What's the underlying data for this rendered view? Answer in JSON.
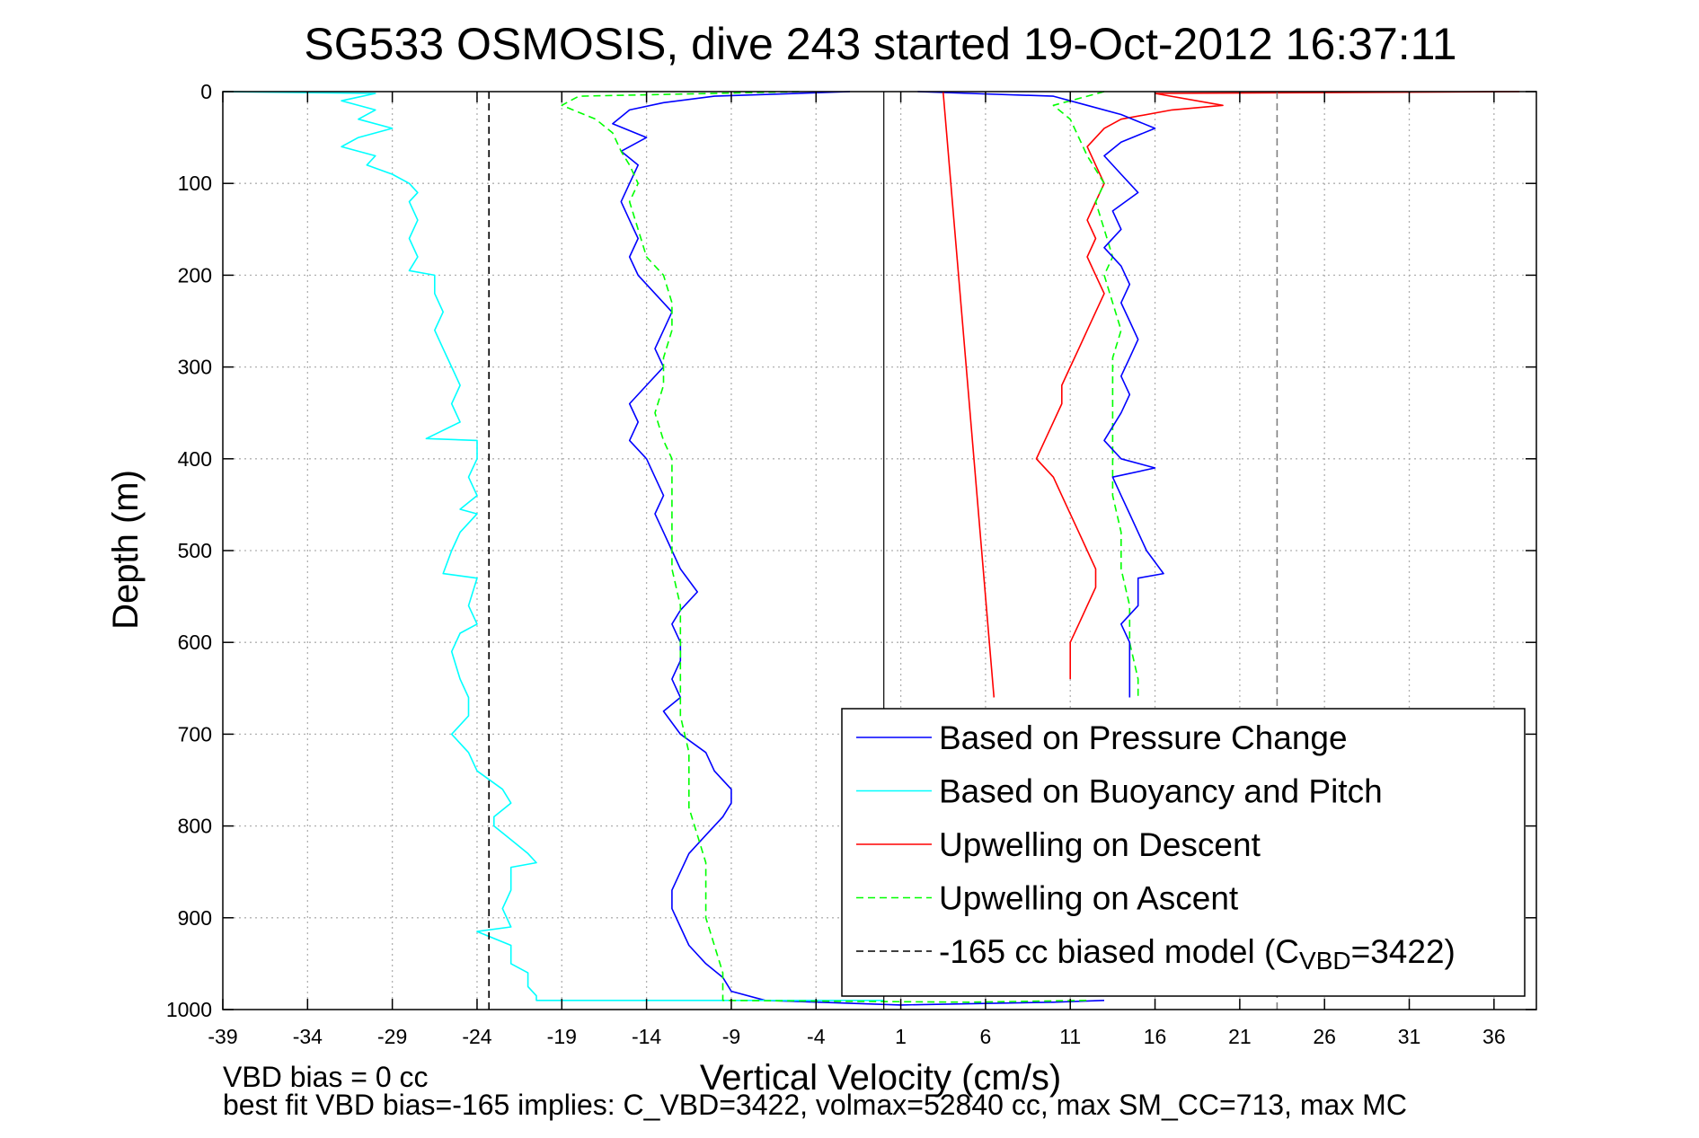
{
  "chart_data": {
    "type": "line",
    "title": "SG533 OSMOSIS, dive 243 started 19-Oct-2012 16:37:11",
    "xlabel": "Vertical Velocity (cm/s)",
    "ylabel": "Depth (m)",
    "xlim": [
      -39,
      38.5
    ],
    "ylim": [
      1000,
      0
    ],
    "y_reversed": true,
    "grid": true,
    "xticks": [
      -39,
      -34,
      -29,
      -24,
      -19,
      -14,
      -9,
      -4,
      1,
      6,
      11,
      16,
      21,
      26,
      31,
      36
    ],
    "yticks": [
      0,
      100,
      200,
      300,
      400,
      500,
      600,
      700,
      800,
      900,
      1000
    ],
    "legend_position": "bottom-right",
    "footer_lines": [
      "VBD bias = 0 cc",
      "best fit VBD bias=-165 implies: C_VBD=3422, volmax=52840 cc, max SM_CC=713, max MC"
    ],
    "series": [
      {
        "name": "Based on Pressure Change",
        "color": "#0000ff",
        "style": "solid",
        "points": [
          [
            -2,
            0
          ],
          [
            -10,
            5
          ],
          [
            -13,
            12
          ],
          [
            -15,
            20
          ],
          [
            -16,
            35
          ],
          [
            -14,
            50
          ],
          [
            -15.5,
            65
          ],
          [
            -14.5,
            80
          ],
          [
            -15,
            100
          ],
          [
            -15.5,
            120
          ],
          [
            -15,
            140
          ],
          [
            -14.5,
            160
          ],
          [
            -15,
            180
          ],
          [
            -14.5,
            200
          ],
          [
            -13.5,
            220
          ],
          [
            -12.5,
            240
          ],
          [
            -13,
            260
          ],
          [
            -13.5,
            280
          ],
          [
            -13,
            300
          ],
          [
            -14,
            320
          ],
          [
            -15,
            340
          ],
          [
            -14.5,
            360
          ],
          [
            -15,
            380
          ],
          [
            -14,
            400
          ],
          [
            -13.5,
            420
          ],
          [
            -13,
            440
          ],
          [
            -13.5,
            460
          ],
          [
            -13,
            480
          ],
          [
            -12.5,
            500
          ],
          [
            -12,
            520
          ],
          [
            -11,
            545
          ],
          [
            -12,
            565
          ],
          [
            -12.5,
            580
          ],
          [
            -12,
            600
          ],
          [
            -12,
            620
          ],
          [
            -12.5,
            640
          ],
          [
            -12,
            660
          ],
          [
            -13,
            675
          ],
          [
            -12,
            700
          ],
          [
            -10.5,
            720
          ],
          [
            -10,
            740
          ],
          [
            -9,
            760
          ],
          [
            -9,
            775
          ],
          [
            -9.5,
            790
          ],
          [
            -10.5,
            810
          ],
          [
            -11.5,
            830
          ],
          [
            -12,
            850
          ],
          [
            -12.5,
            870
          ],
          [
            -12.5,
            890
          ],
          [
            -12,
            910
          ],
          [
            -11.5,
            930
          ],
          [
            -10.5,
            950
          ],
          [
            -9.5,
            965
          ],
          [
            -9,
            980
          ],
          [
            -7,
            990
          ],
          [
            1,
            995
          ],
          [
            10,
            992
          ],
          [
            13,
            990
          ]
        ]
      },
      {
        "name": "Based on Buoyancy and Pitch",
        "color": "#00ffff",
        "style": "solid",
        "points": [
          [
            -39,
            0
          ],
          [
            -30,
            2
          ],
          [
            -32,
            10
          ],
          [
            -30,
            20
          ],
          [
            -31,
            30
          ],
          [
            -29,
            40
          ],
          [
            -31,
            50
          ],
          [
            -32,
            60
          ],
          [
            -30,
            70
          ],
          [
            -30.5,
            80
          ],
          [
            -29,
            90
          ],
          [
            -28,
            100
          ],
          [
            -27.5,
            110
          ],
          [
            -28,
            120
          ],
          [
            -27.5,
            140
          ],
          [
            -28,
            160
          ],
          [
            -27.5,
            180
          ],
          [
            -28,
            195
          ],
          [
            -26.5,
            200
          ],
          [
            -26.5,
            220
          ],
          [
            -26,
            240
          ],
          [
            -26.5,
            260
          ],
          [
            -26,
            280
          ],
          [
            -25.5,
            300
          ],
          [
            -25,
            320
          ],
          [
            -25.5,
            340
          ],
          [
            -25,
            360
          ],
          [
            -27,
            378
          ],
          [
            -24,
            380
          ],
          [
            -24,
            400
          ],
          [
            -24.5,
            420
          ],
          [
            -24,
            440
          ],
          [
            -25,
            455
          ],
          [
            -24,
            460
          ],
          [
            -25,
            480
          ],
          [
            -25.5,
            500
          ],
          [
            -26,
            525
          ],
          [
            -24,
            530
          ],
          [
            -24.5,
            560
          ],
          [
            -24,
            580
          ],
          [
            -25,
            590
          ],
          [
            -25.5,
            610
          ],
          [
            -25,
            640
          ],
          [
            -24.5,
            660
          ],
          [
            -24.5,
            680
          ],
          [
            -25.5,
            700
          ],
          [
            -24.5,
            720
          ],
          [
            -24,
            740
          ],
          [
            -22.5,
            760
          ],
          [
            -22,
            775
          ],
          [
            -23,
            790
          ],
          [
            -23,
            800
          ],
          [
            -22,
            815
          ],
          [
            -21,
            830
          ],
          [
            -20.5,
            840
          ],
          [
            -22,
            845
          ],
          [
            -22,
            870
          ],
          [
            -22.5,
            890
          ],
          [
            -22,
            910
          ],
          [
            -24,
            915
          ],
          [
            -22,
            930
          ],
          [
            -22,
            950
          ],
          [
            -21,
            960
          ],
          [
            -21,
            975
          ],
          [
            -20.5,
            985
          ],
          [
            -20.5,
            990
          ],
          [
            -10,
            990
          ],
          [
            0,
            990
          ]
        ]
      },
      {
        "name": "Upwelling on Descent",
        "color": "#ff0000",
        "style": "solid",
        "points": [
          [
            37.5,
            0
          ],
          [
            16,
            2
          ],
          [
            20,
            15
          ],
          [
            17,
            20
          ],
          [
            14,
            30
          ],
          [
            13,
            40
          ],
          [
            12,
            60
          ],
          [
            12.5,
            80
          ],
          [
            13,
            100
          ],
          [
            12.5,
            120
          ],
          [
            12,
            140
          ],
          [
            12.5,
            160
          ],
          [
            12,
            180
          ],
          [
            12.5,
            200
          ],
          [
            13,
            220
          ],
          [
            12.5,
            240
          ],
          [
            12,
            260
          ],
          [
            11.5,
            280
          ],
          [
            11,
            300
          ],
          [
            10.5,
            320
          ],
          [
            10.5,
            340
          ],
          [
            10,
            360
          ],
          [
            9.5,
            380
          ],
          [
            9,
            400
          ],
          [
            10,
            420
          ],
          [
            10.5,
            440
          ],
          [
            11,
            460
          ],
          [
            11.5,
            480
          ],
          [
            12,
            500
          ],
          [
            12.5,
            520
          ],
          [
            12.5,
            540
          ],
          [
            12,
            560
          ],
          [
            11.5,
            580
          ],
          [
            11,
            600
          ],
          [
            11,
            620
          ],
          [
            11,
            640
          ]
        ]
      },
      {
        "name": "Upwelling on Ascent",
        "color": "#00ff00",
        "style": "dashed",
        "points": [
          [
            -5,
            0
          ],
          [
            -18,
            5
          ],
          [
            -19,
            15
          ],
          [
            -17,
            30
          ],
          [
            -16,
            45
          ],
          [
            -15.5,
            65
          ],
          [
            -15,
            80
          ],
          [
            -14.5,
            100
          ],
          [
            -15,
            120
          ],
          [
            -14.5,
            150
          ],
          [
            -14,
            180
          ],
          [
            -13,
            200
          ],
          [
            -12.5,
            230
          ],
          [
            -12.5,
            260
          ],
          [
            -13,
            290
          ],
          [
            -13,
            320
          ],
          [
            -13.5,
            350
          ],
          [
            -13,
            380
          ],
          [
            -12.5,
            400
          ],
          [
            -12.5,
            440
          ],
          [
            -12.5,
            480
          ],
          [
            -12.5,
            520
          ],
          [
            -12,
            560
          ],
          [
            -12,
            600
          ],
          [
            -12,
            640
          ],
          [
            -12,
            680
          ],
          [
            -11.5,
            720
          ],
          [
            -11.5,
            750
          ],
          [
            -11.5,
            780
          ],
          [
            -11,
            810
          ],
          [
            -10.5,
            840
          ],
          [
            -10.5,
            870
          ],
          [
            -10.5,
            900
          ],
          [
            -10,
            930
          ],
          [
            -9.5,
            960
          ],
          [
            -9.5,
            980
          ],
          [
            -9.5,
            990
          ],
          [
            5,
            992
          ],
          [
            12,
            990
          ]
        ]
      },
      {
        "name": "Upwelling on Ascent (upper-right trace)",
        "color": "#00ff00",
        "style": "dashed",
        "legend": false,
        "points": [
          [
            13,
            0
          ],
          [
            10,
            15
          ],
          [
            11,
            30
          ],
          [
            11.5,
            50
          ],
          [
            12,
            70
          ],
          [
            13,
            100
          ],
          [
            12.5,
            120
          ],
          [
            13,
            150
          ],
          [
            13.5,
            180
          ],
          [
            13,
            200
          ],
          [
            13.5,
            230
          ],
          [
            14,
            260
          ],
          [
            13.5,
            290
          ],
          [
            13.5,
            320
          ],
          [
            13.5,
            350
          ],
          [
            13.5,
            380
          ],
          [
            13.5,
            400
          ],
          [
            13.5,
            440
          ],
          [
            14,
            480
          ],
          [
            14,
            520
          ],
          [
            14.5,
            560
          ],
          [
            14.5,
            600
          ],
          [
            15,
            640
          ],
          [
            15,
            660
          ]
        ]
      },
      {
        "name": "Based on Pressure Change (ascent branch)",
        "color": "#0000ff",
        "style": "solid",
        "legend": false,
        "points": [
          [
            2,
            0
          ],
          [
            10,
            5
          ],
          [
            12,
            15
          ],
          [
            14,
            25
          ],
          [
            16,
            40
          ],
          [
            14,
            55
          ],
          [
            13,
            70
          ],
          [
            14,
            90
          ],
          [
            15,
            110
          ],
          [
            13.5,
            130
          ],
          [
            14,
            150
          ],
          [
            13,
            170
          ],
          [
            14,
            190
          ],
          [
            14.5,
            210
          ],
          [
            14,
            230
          ],
          [
            14.5,
            250
          ],
          [
            15,
            270
          ],
          [
            14.5,
            290
          ],
          [
            14,
            310
          ],
          [
            14.5,
            330
          ],
          [
            14,
            350
          ],
          [
            13,
            380
          ],
          [
            14,
            400
          ],
          [
            16,
            410
          ],
          [
            13.5,
            420
          ],
          [
            14,
            440
          ],
          [
            14.5,
            460
          ],
          [
            15,
            480
          ],
          [
            15.5,
            500
          ],
          [
            16.5,
            525
          ],
          [
            15,
            530
          ],
          [
            15,
            560
          ],
          [
            14,
            580
          ],
          [
            14.5,
            600
          ],
          [
            14.5,
            630
          ],
          [
            14.5,
            660
          ]
        ]
      },
      {
        "name": "Model line (descent)",
        "color": "#ff0000",
        "style": "solid",
        "legend": false,
        "points": [
          [
            3.5,
            0
          ],
          [
            6.5,
            660
          ]
        ]
      },
      {
        "name": "-165 cc biased model",
        "legend_label_parts": [
          "-165 cc biased model (C",
          "VBD",
          "=3422)"
        ],
        "color": "#000000",
        "style": "dashed",
        "points": [
          [
            -23.3,
            0
          ],
          [
            -23.3,
            1000
          ]
        ]
      },
      {
        "name": "-165 cc biased model (ascent)",
        "color": "#808080",
        "style": "dashed",
        "legend": false,
        "points": [
          [
            23.2,
            0
          ],
          [
            23.2,
            1000
          ]
        ]
      },
      {
        "name": "zero velocity reference",
        "color": "#000000",
        "style": "solid-thin",
        "legend": false,
        "points": [
          [
            0,
            0
          ],
          [
            0,
            1000
          ]
        ]
      }
    ]
  }
}
